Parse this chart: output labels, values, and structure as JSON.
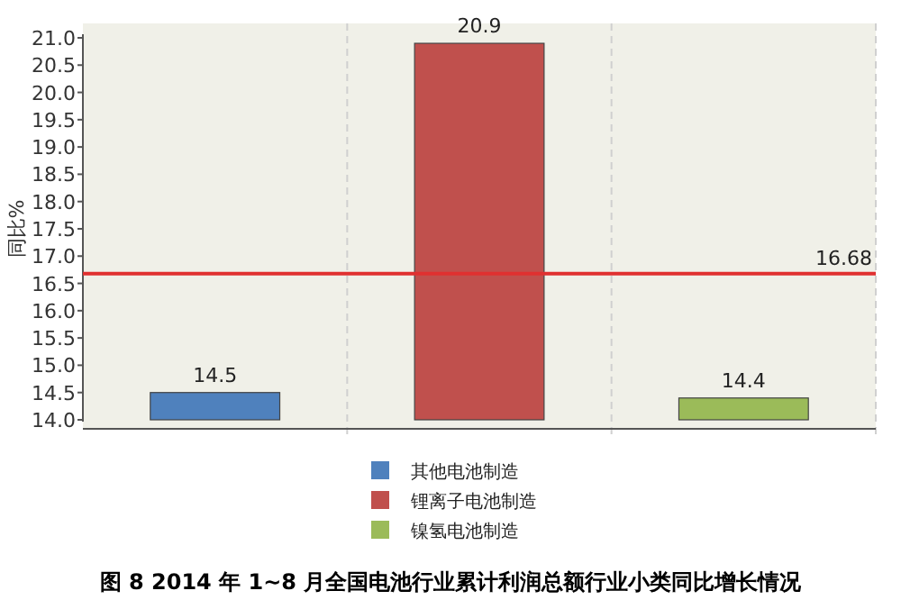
{
  "chart_data": {
    "type": "bar",
    "title": "图 8 2014 年 1~8 月全国电池行业累计利润总额行业小类同比增长情况",
    "ylabel": "同比%",
    "categories": [
      null,
      null,
      null
    ],
    "series": [
      {
        "name": "其他电池制造",
        "color": "#4f81bd",
        "values": [
          14.5,
          null,
          null
        ]
      },
      {
        "name": "锂离子电池制造",
        "color": "#c0504d",
        "values": [
          null,
          20.9,
          null
        ]
      },
      {
        "name": "镍氢电池制造",
        "color": "#9bbb59",
        "values": [
          null,
          null,
          14.4
        ]
      }
    ],
    "ylim": [
      14.0,
      21.0
    ],
    "yticks": [
      {
        "value": 14,
        "label": "14.0"
      },
      {
        "value": 14.5,
        "label": "14.5"
      },
      {
        "value": 15,
        "label": "15.0"
      },
      {
        "value": 15.5,
        "label": "15.5"
      },
      {
        "value": 16,
        "label": "16.0"
      },
      {
        "value": 16.5,
        "label": "16.5"
      },
      {
        "value": 17,
        "label": "17.0"
      },
      {
        "value": 17.5,
        "label": "17.5"
      },
      {
        "value": 18,
        "label": "18.0"
      },
      {
        "value": 18.5,
        "label": "18.5"
      },
      {
        "value": 19,
        "label": "19.0"
      },
      {
        "value": 19.5,
        "label": "19.5"
      },
      {
        "value": 20,
        "label": "20.0"
      },
      {
        "value": 20.5,
        "label": "20.5"
      },
      {
        "value": 21,
        "label": "21.0"
      }
    ],
    "ref_lines": [
      {
        "axis": "y",
        "value": 16.68,
        "label": "16.68",
        "color": "#e03030"
      }
    ],
    "grid": "x",
    "legend": "bottom",
    "data_labels": true
  }
}
